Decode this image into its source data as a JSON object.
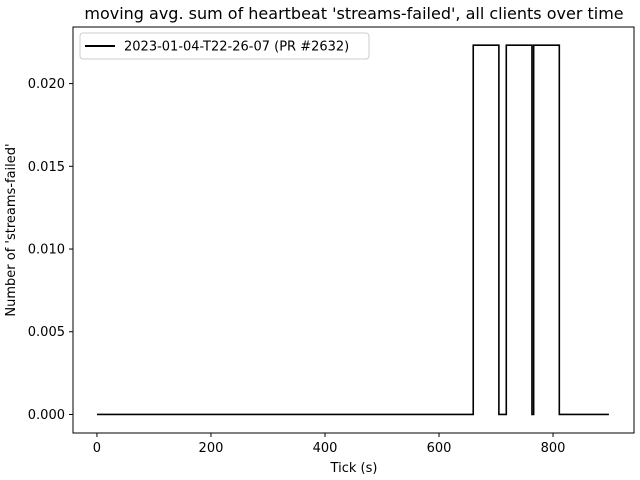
{
  "chart_data": {
    "type": "line",
    "title": "moving avg. sum of heartbeat 'streams-failed', all clients over time",
    "xlabel": "Tick (s)",
    "ylabel": "Number of 'streams-failed'",
    "xlim": [
      -42,
      942
    ],
    "ylim": [
      -0.00112,
      0.02342
    ],
    "xticks": [
      0,
      200,
      400,
      600,
      800
    ],
    "xtick_labels": [
      "0",
      "200",
      "400",
      "600",
      "800"
    ],
    "yticks": [
      0.0,
      0.005,
      0.01,
      0.015,
      0.02
    ],
    "ytick_labels": [
      "0.000",
      "0.005",
      "0.010",
      "0.015",
      "0.020"
    ],
    "grid": false,
    "legend_position": "top-left",
    "series": [
      {
        "name": "2023-01-04-T22-26-07 (PR #2632)",
        "color": "#000000",
        "x": [
          0,
          660,
          660,
          705,
          705,
          718,
          718,
          763,
          763,
          766,
          766,
          811,
          811,
          898
        ],
        "y": [
          0,
          0,
          0.02232,
          0.02232,
          0,
          0,
          0.02232,
          0.02232,
          0,
          0,
          0.02232,
          0.02232,
          0,
          0
        ]
      }
    ]
  }
}
